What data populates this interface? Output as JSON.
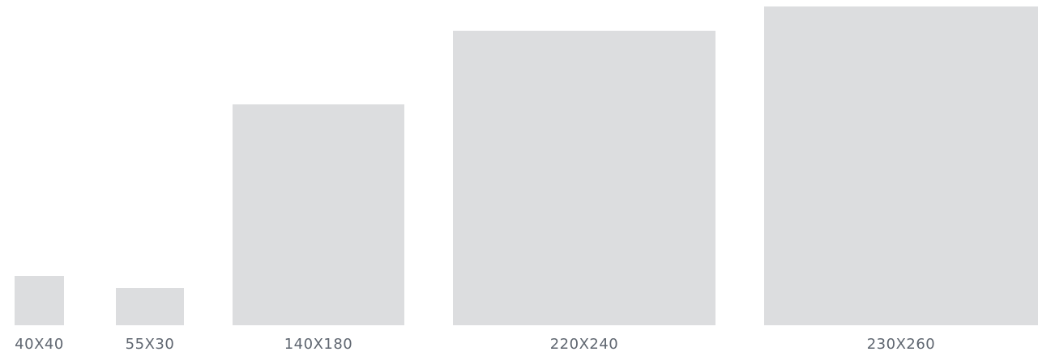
{
  "box_color": "#dcdddf",
  "label_color": "#5f6670",
  "sizes": [
    {
      "label": "40X40"
    },
    {
      "label": "55X30"
    },
    {
      "label": "140X180"
    },
    {
      "label": "220X240"
    },
    {
      "label": "230X260"
    }
  ]
}
